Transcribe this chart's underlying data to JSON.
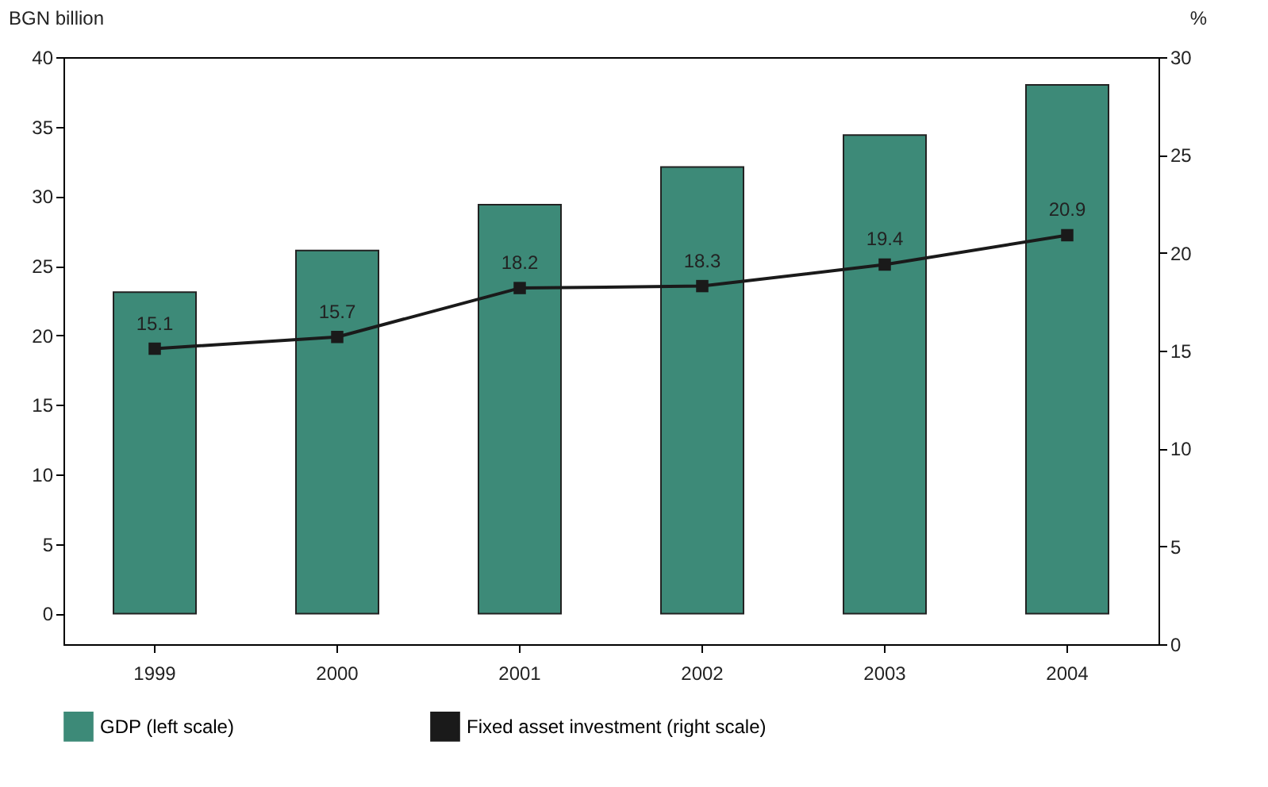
{
  "chart_data": {
    "type": "bar",
    "ylabel": "BGN billion",
    "y2label": "%",
    "categories": [
      "1999",
      "2000",
      "2001",
      "2002",
      "2003",
      "2004"
    ],
    "series": [
      {
        "name": "GDP (left scale)",
        "color": "#3d8a78",
        "values": [
          23.1,
          26.1,
          29.4,
          32.1,
          34.4,
          38.0
        ]
      },
      {
        "name": "Fixed asset investment (right scale)",
        "type": "line",
        "axis": "y2",
        "color": "#1a1a1a",
        "marker": "square",
        "data_labels": true,
        "values": [
          15.1,
          15.7,
          18.2,
          18.3,
          19.4,
          20.9
        ]
      }
    ],
    "ylim": [
      -2.2,
      40
    ],
    "yticks": [
      0,
      5,
      10,
      15,
      20,
      25,
      30,
      35,
      40
    ],
    "y2lim": [
      0,
      30
    ],
    "y2ticks": [
      0,
      5,
      10,
      15,
      20,
      25,
      30
    ],
    "grid": false,
    "legend": "bottom"
  }
}
